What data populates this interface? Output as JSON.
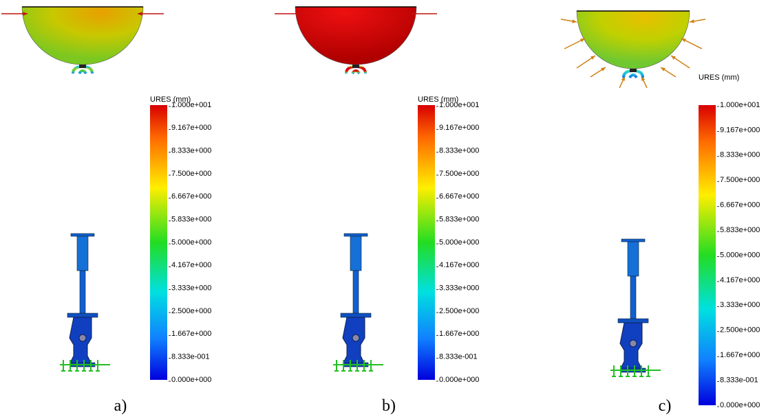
{
  "panels": [
    {
      "caption": "a)",
      "legend": {
        "title": "URES (mm)",
        "ticks": [
          "1.000e+001",
          "9.167e+000",
          "8.333e+000",
          "7.500e+000",
          "6.667e+000",
          "5.833e+000",
          "5.000e+000",
          "4.167e+000",
          "3.333e+000",
          "2.500e+000",
          "1.667e+000",
          "8.333e-001",
          "0.000e+000"
        ]
      }
    },
    {
      "caption": "b)",
      "legend": {
        "title": "URES (mm)",
        "ticks": [
          "1.000e+001",
          "9.167e+000",
          "8.333e+000",
          "7.500e+000",
          "6.667e+000",
          "5.833e+000",
          "5.000e+000",
          "4.167e+000",
          "3.333e+000",
          "2.500e+000",
          "1.667e+000",
          "8.333e-001",
          "0.000e+000"
        ]
      }
    },
    {
      "caption": "c)",
      "legend": {
        "title": "URES (mm)",
        "ticks": [
          "1.000e+001",
          "9.167e+000",
          "8.333e+000",
          "7.500e+000",
          "6.667e+000",
          "5.833e+000",
          "5.000e+000",
          "4.167e+000",
          "3.333e+000",
          "2.500e+000",
          "1.667e+000",
          "8.333e-001",
          "0.000e+000"
        ]
      }
    }
  ]
}
